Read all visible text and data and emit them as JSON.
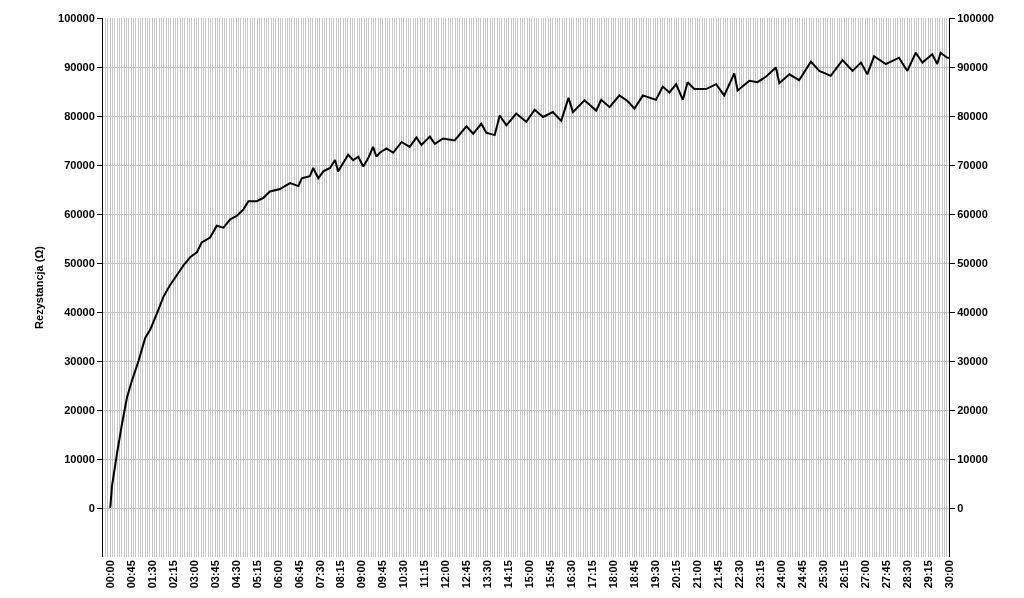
{
  "chart_data": {
    "type": "line",
    "ylabel": "Rezystancja (Ω)",
    "x": [
      0,
      0.06,
      0.24,
      0.42,
      0.6,
      0.77,
      1.01,
      1.25,
      1.43,
      1.67,
      1.9,
      2.14,
      2.38,
      2.62,
      2.86,
      3.1,
      3.27,
      3.57,
      3.81,
      4.05,
      4.29,
      4.52,
      4.76,
      4.94,
      5.24,
      5.48,
      5.71,
      6.07,
      6.43,
      6.73,
      6.85,
      7.14,
      7.26,
      7.44,
      7.62,
      7.86,
      8.04,
      8.15,
      8.33,
      8.51,
      8.69,
      8.87,
      9.05,
      9.23,
      9.4,
      9.52,
      9.64,
      9.88,
      10.12,
      10.42,
      10.71,
      10.95,
      11.13,
      11.43,
      11.61,
      11.9,
      12.32,
      12.74,
      12.98,
      13.27,
      13.45,
      13.75,
      13.93,
      14.17,
      14.52,
      14.88,
      15.18,
      15.48,
      15.83,
      16.13,
      16.39,
      16.55,
      16.96,
      17.38,
      17.56,
      17.86,
      18.21,
      18.51,
      18.75,
      19.05,
      19.52,
      19.76,
      20.0,
      20.24,
      20.48,
      20.65,
      20.89,
      21.31,
      21.67,
      21.96,
      22.32,
      22.44,
      22.86,
      23.15,
      23.45,
      23.81,
      23.93,
      24.29,
      24.64,
      25.06,
      25.36,
      25.77,
      26.19,
      26.55,
      26.85,
      27.08,
      27.32,
      27.74,
      28.21,
      28.51,
      28.81,
      29.05,
      29.4,
      29.58,
      29.7,
      29.94,
      30
    ],
    "series": [
      {
        "color": "#000000",
        "values": [
          0,
          4400,
          11100,
          17200,
          22600,
          25900,
          30000,
          34700,
          36400,
          39700,
          43100,
          45500,
          47500,
          49500,
          51200,
          52200,
          54200,
          55200,
          57600,
          57200,
          58900,
          59600,
          60900,
          62600,
          62600,
          63300,
          64600,
          65100,
          66300,
          65700,
          67300,
          67700,
          69400,
          67300,
          68700,
          69400,
          71000,
          68700,
          70400,
          72100,
          71000,
          71700,
          69700,
          71400,
          73700,
          71700,
          72500,
          73400,
          72500,
          74700,
          73700,
          75600,
          74100,
          75800,
          74300,
          75400,
          75000,
          77900,
          76400,
          78400,
          76600,
          76100,
          80100,
          78100,
          80500,
          78800,
          81300,
          79800,
          80800,
          79000,
          83700,
          80800,
          83200,
          81100,
          83300,
          81800,
          84200,
          83000,
          81500,
          84200,
          83300,
          86000,
          84800,
          86500,
          83300,
          86900,
          85500,
          85500,
          86500,
          84200,
          88700,
          85200,
          87200,
          86900,
          88000,
          89900,
          86700,
          88500,
          87300,
          91100,
          89200,
          88200,
          91400,
          89200,
          90900,
          88500,
          92200,
          90600,
          91900,
          89200,
          92900,
          90900,
          92600,
          90600,
          92900,
          91900,
          91900
        ]
      }
    ],
    "xlim": [
      -0.26,
      30
    ],
    "xticks": [
      {
        "value": 0,
        "label": "00:00"
      },
      {
        "value": 0.75,
        "label": "00:45"
      },
      {
        "value": 1.5,
        "label": "01:30"
      },
      {
        "value": 2.25,
        "label": "02:15"
      },
      {
        "value": 3,
        "label": "03:00"
      },
      {
        "value": 3.75,
        "label": "03:45"
      },
      {
        "value": 4.5,
        "label": "04:30"
      },
      {
        "value": 5.25,
        "label": "05:15"
      },
      {
        "value": 6,
        "label": "06:00"
      },
      {
        "value": 6.75,
        "label": "06:45"
      },
      {
        "value": 7.5,
        "label": "07:30"
      },
      {
        "value": 8.25,
        "label": "08:15"
      },
      {
        "value": 9,
        "label": "09:00"
      },
      {
        "value": 9.75,
        "label": "09:45"
      },
      {
        "value": 10.5,
        "label": "10:30"
      },
      {
        "value": 11.25,
        "label": "11:15"
      },
      {
        "value": 12,
        "label": "12:00"
      },
      {
        "value": 12.75,
        "label": "12:45"
      },
      {
        "value": 13.5,
        "label": "13:30"
      },
      {
        "value": 14.25,
        "label": "14:15"
      },
      {
        "value": 15,
        "label": "15:00"
      },
      {
        "value": 15.75,
        "label": "15:45"
      },
      {
        "value": 16.5,
        "label": "16:30"
      },
      {
        "value": 17.25,
        "label": "17:15"
      },
      {
        "value": 18,
        "label": "18:00"
      },
      {
        "value": 18.75,
        "label": "18:45"
      },
      {
        "value": 19.5,
        "label": "19:30"
      },
      {
        "value": 20.25,
        "label": "20:15"
      },
      {
        "value": 21,
        "label": "21:00"
      },
      {
        "value": 21.75,
        "label": "21:45"
      },
      {
        "value": 22.5,
        "label": "22:30"
      },
      {
        "value": 23.25,
        "label": "23:15"
      },
      {
        "value": 24,
        "label": "24:00"
      },
      {
        "value": 24.75,
        "label": "24:45"
      },
      {
        "value": 25.5,
        "label": "25:30"
      },
      {
        "value": 26.25,
        "label": "26:15"
      },
      {
        "value": 27,
        "label": "27:00"
      },
      {
        "value": 27.75,
        "label": "27:45"
      },
      {
        "value": 28.5,
        "label": "28:30"
      },
      {
        "value": 29.25,
        "label": "29:15"
      },
      {
        "value": 30,
        "label": "30:00"
      }
    ],
    "ylim": [
      -10000,
      100000
    ],
    "yticks": [
      0,
      10000,
      20000,
      30000,
      40000,
      50000,
      60000,
      70000,
      80000,
      90000,
      100000
    ],
    "y2lim": [
      -10000,
      100000
    ],
    "y2ticks": [
      0,
      10000,
      20000,
      30000,
      40000,
      50000,
      60000,
      70000,
      80000,
      90000,
      100000
    ],
    "grid": true,
    "line_style": "solid",
    "marker": "none"
  }
}
